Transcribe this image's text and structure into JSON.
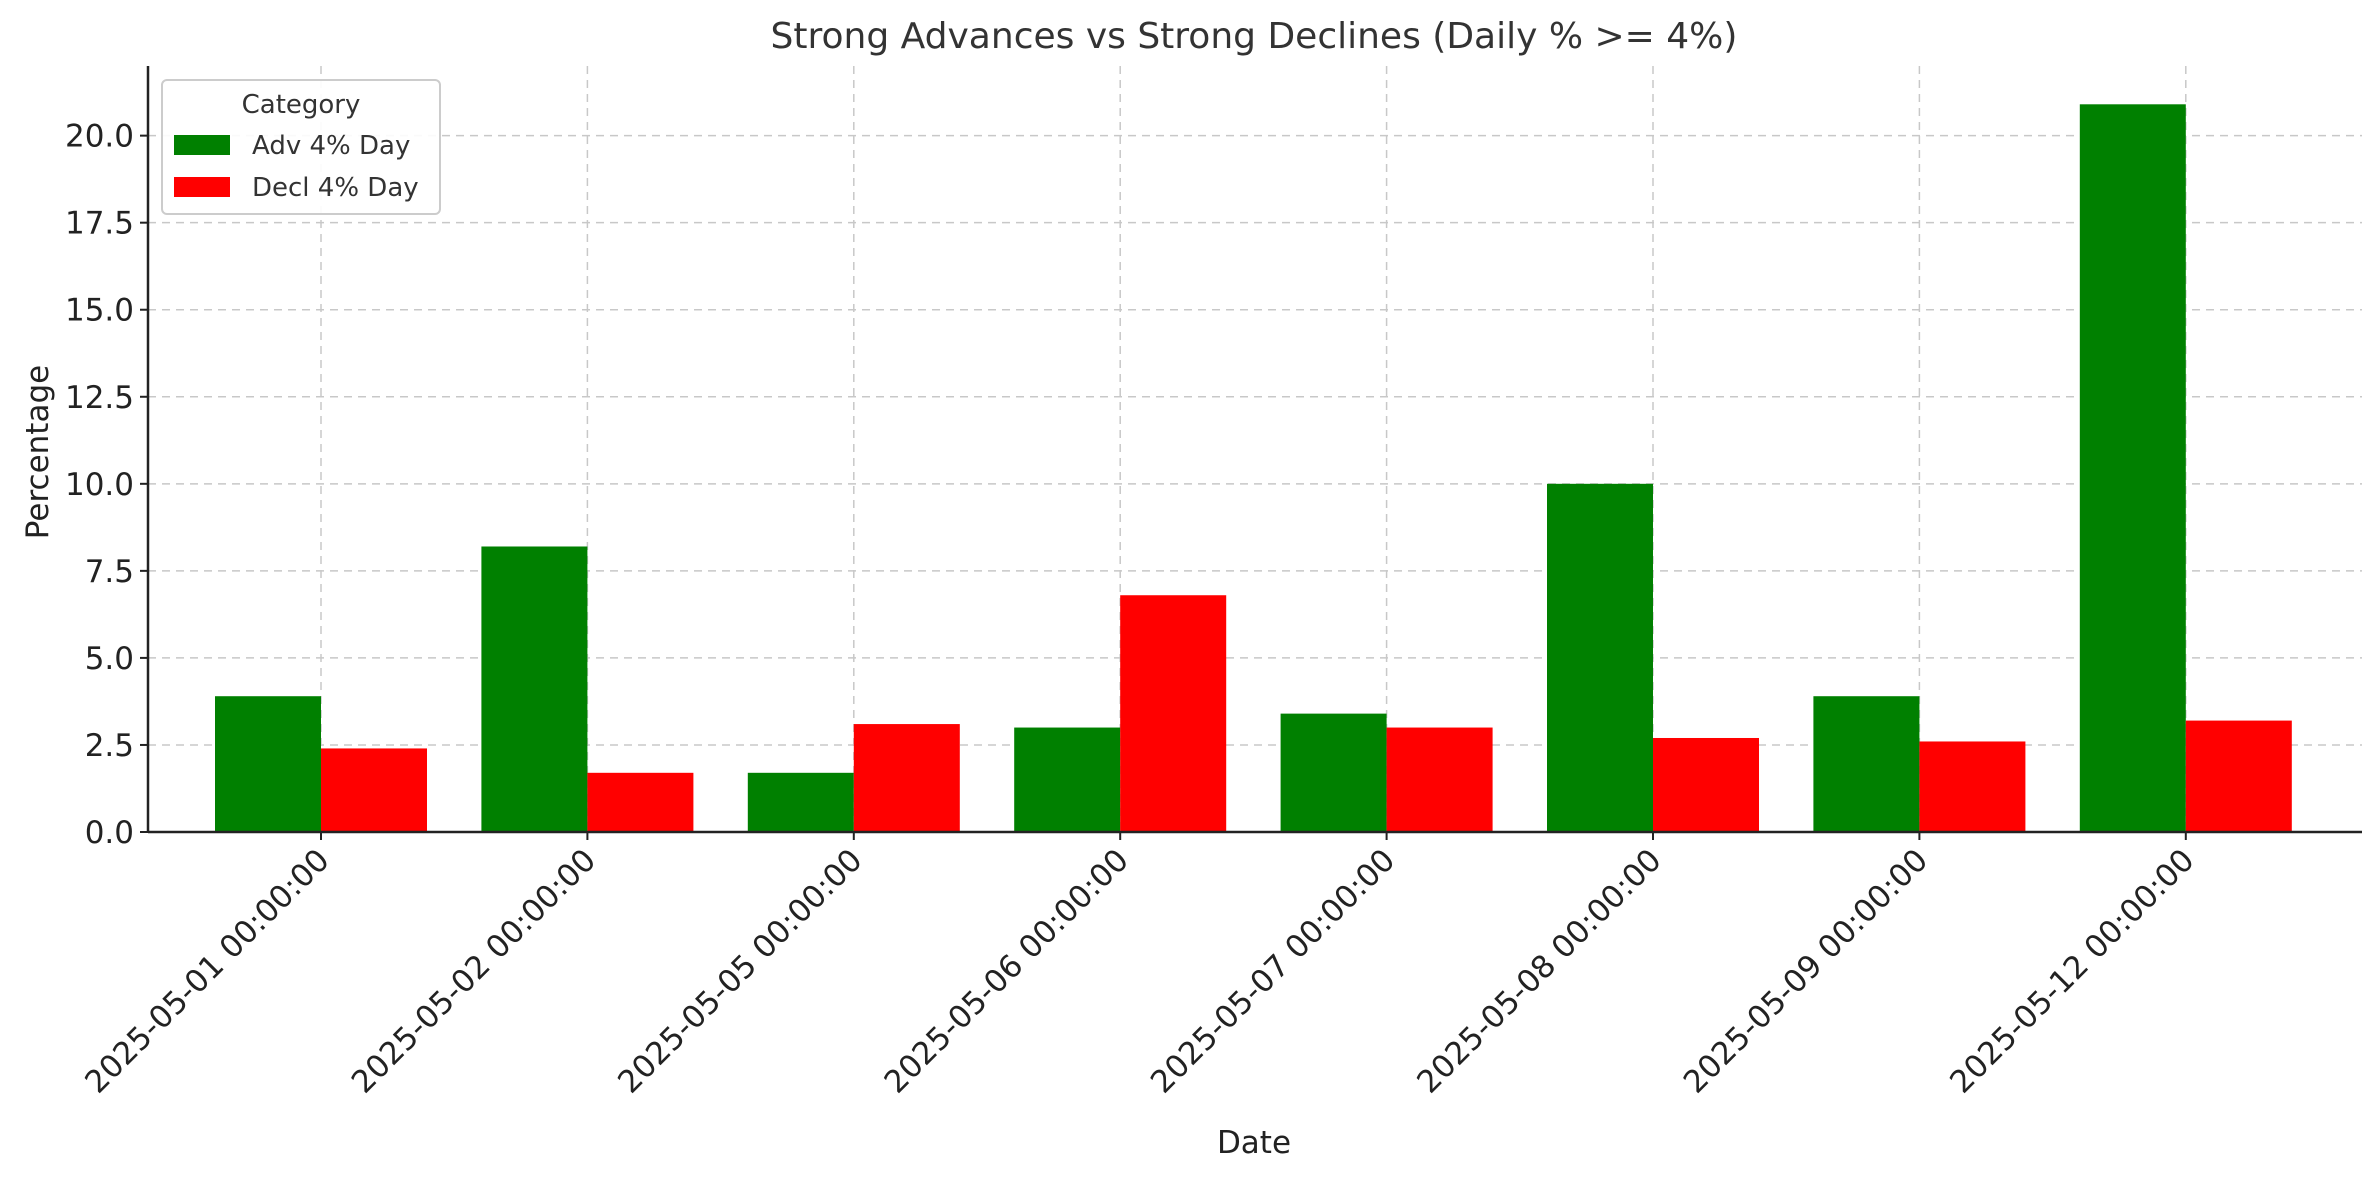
{
  "chart_data": {
    "type": "bar",
    "title": "Strong Advances vs Strong Declines (Daily % >= 4%)",
    "xlabel": "Date",
    "ylabel": "Percentage",
    "categories": [
      "2025-05-01 00:00:00",
      "2025-05-02 00:00:00",
      "2025-05-05 00:00:00",
      "2025-05-06 00:00:00",
      "2025-05-07 00:00:00",
      "2025-05-08 00:00:00",
      "2025-05-09 00:00:00",
      "2025-05-12 00:00:00"
    ],
    "series": [
      {
        "name": "Adv 4% Day",
        "color": "#008000",
        "values": [
          3.9,
          8.2,
          1.7,
          3.0,
          3.4,
          10.0,
          3.9,
          20.9
        ]
      },
      {
        "name": "Decl 4% Day",
        "color": "#ff0000",
        "values": [
          2.4,
          1.7,
          3.1,
          6.8,
          3.0,
          2.7,
          2.6,
          3.2
        ]
      }
    ],
    "ylim": [
      0,
      22
    ],
    "yticks": [
      "0.0",
      "2.5",
      "5.0",
      "7.5",
      "10.0",
      "12.5",
      "15.0",
      "17.5",
      "20.0"
    ],
    "grid": true,
    "legend": {
      "title": "Category",
      "placement": "top-left"
    }
  }
}
